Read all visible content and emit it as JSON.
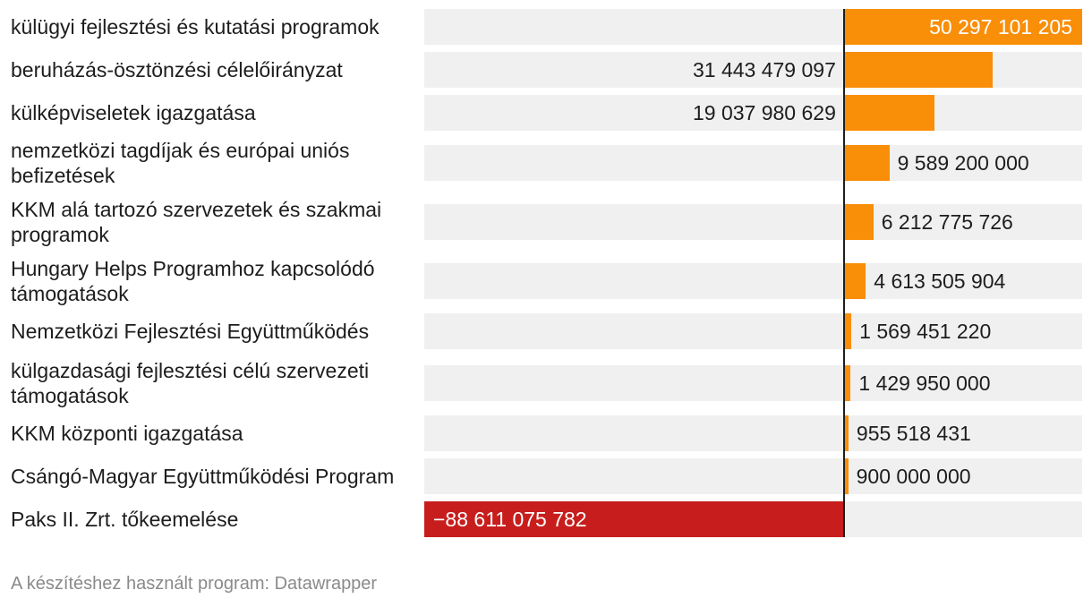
{
  "chart_data": {
    "type": "bar",
    "orientation": "horizontal",
    "categories": [
      "külügyi fejlesztési és kutatási programok",
      "beruházás-ösztönzési célelőirányzat",
      "külképviseletek igazgatása",
      "nemzetközi tagdíjak és európai uniós befizetések",
      "KKM alá tartozó szervezetek és szakmai programok",
      "Hungary Helps Programhoz kapcsolódó támogatások",
      "Nemzetközi Fejlesztési Együttműködés",
      "külgazdasági fejlesztési célú szervezeti támogatások",
      "KKM központi igazgatása",
      "Csángó-Magyar Együttműködési Program",
      "Paks II. Zrt. tőkeemelése"
    ],
    "values": [
      50297101205,
      31443479097,
      19037980629,
      9589200000,
      6212775726,
      4613505904,
      1569451220,
      1429950000,
      955518431,
      900000000,
      -88611075782
    ],
    "value_labels": [
      "50 297 101 205",
      "31 443 479 097",
      "19 037 980 629",
      "9 589 200 000",
      "6 212 775 726",
      "4 613 505 904",
      "1 569 451 220",
      "1 429 950 000",
      "955 518 431",
      "900 000 000",
      "−88 611 075 782"
    ],
    "xlim": [
      -88611075782,
      50297101205
    ],
    "colors": {
      "positive": "#f98e08",
      "negative": "#c71e1d",
      "track": "#f0f0f0",
      "zero_line": "#1d1d1d"
    },
    "title": "",
    "xlabel": "",
    "ylabel": "",
    "grid": false
  },
  "footer": {
    "text": "A készítéshez használt program: Datawrapper"
  }
}
